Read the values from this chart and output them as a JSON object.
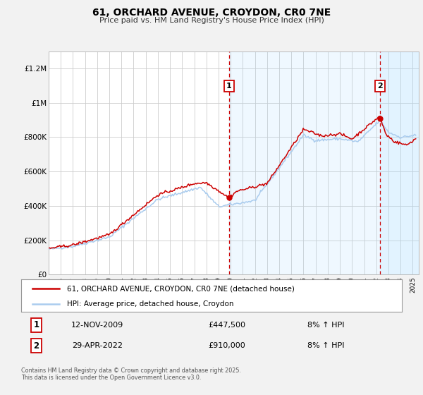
{
  "title": "61, ORCHARD AVENUE, CROYDON, CR0 7NE",
  "subtitle": "Price paid vs. HM Land Registry's House Price Index (HPI)",
  "ylabel_ticks": [
    "£0",
    "£200K",
    "£400K",
    "£600K",
    "£800K",
    "£1M",
    "£1.2M"
  ],
  "ytick_values": [
    0,
    200000,
    400000,
    600000,
    800000,
    1000000,
    1200000
  ],
  "ylim": [
    0,
    1300000
  ],
  "xlim_start": 1995.0,
  "xlim_end": 2025.5,
  "red_color": "#cc0000",
  "blue_color": "#aaccee",
  "dashed_color": "#cc0000",
  "bg_color": "#f2f2f2",
  "plot_bg": "#ffffff",
  "grid_color": "#cccccc",
  "marker1_x": 2009.87,
  "marker1_y": 447500,
  "marker2_x": 2022.33,
  "marker2_y": 910000,
  "legend_red_label": "61, ORCHARD AVENUE, CROYDON, CR0 7NE (detached house)",
  "legend_blue_label": "HPI: Average price, detached house, Croydon",
  "transaction1_num": "1",
  "transaction1_date": "12-NOV-2009",
  "transaction1_price": "£447,500",
  "transaction1_hpi": "8% ↑ HPI",
  "transaction2_num": "2",
  "transaction2_date": "29-APR-2022",
  "transaction2_price": "£910,000",
  "transaction2_hpi": "8% ↑ HPI",
  "footer": "Contains HM Land Registry data © Crown copyright and database right 2025.\nThis data is licensed under the Open Government Licence v3.0.",
  "xtick_years": [
    1995,
    1996,
    1997,
    1998,
    1999,
    2000,
    2001,
    2002,
    2003,
    2004,
    2005,
    2006,
    2007,
    2008,
    2009,
    2010,
    2011,
    2012,
    2013,
    2014,
    2015,
    2016,
    2017,
    2018,
    2019,
    2020,
    2021,
    2022,
    2023,
    2024,
    2025
  ]
}
